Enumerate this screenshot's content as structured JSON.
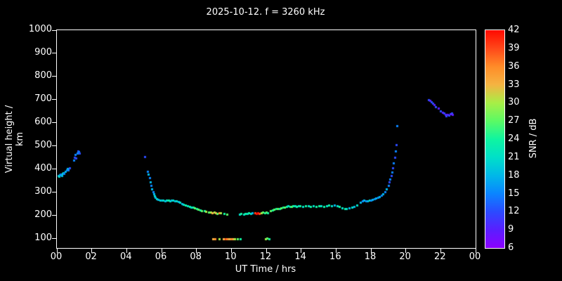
{
  "title": "2025-10-12. f = 3260 kHz",
  "styles": {
    "background": "#000000",
    "foreground": "#ffffff"
  },
  "chart_data": {
    "type": "scatter",
    "title": "2025-10-12. f = 3260 kHz",
    "xlabel": "UT Time / hrs",
    "ylabel": "Virtual height / km",
    "colorbar_label": "SNR / dB",
    "xlim": [
      0,
      24
    ],
    "ylim": [
      60,
      1000
    ],
    "x_ticks": [
      0,
      2,
      4,
      6,
      8,
      10,
      12,
      14,
      16,
      18,
      20,
      22,
      24
    ],
    "x_tick_labels": [
      "00",
      "02",
      "04",
      "06",
      "08",
      "10",
      "12",
      "14",
      "16",
      "18",
      "20",
      "22",
      "00"
    ],
    "y_ticks": [
      100,
      200,
      300,
      400,
      500,
      600,
      700,
      800,
      900,
      1000
    ],
    "snr_ticks": [
      6,
      9,
      12,
      15,
      18,
      21,
      24,
      27,
      30,
      33,
      36,
      39,
      42
    ],
    "snr_range": [
      6,
      42
    ],
    "palette": {
      "6": "#8B00FF",
      "9": "#5A1EFF",
      "12": "#2B4BFF",
      "15": "#0A85FF",
      "18": "#00B8E8",
      "21": "#00E0C8",
      "24": "#0FF5A0",
      "27": "#5BFA64",
      "30": "#A8EE46",
      "33": "#F5B342",
      "36": "#FF8C28",
      "39": "#FF4719",
      "42": "#FF0A00"
    },
    "points": [
      [
        0.08,
        372,
        18
      ],
      [
        0.12,
        368,
        21
      ],
      [
        0.17,
        375,
        18
      ],
      [
        0.22,
        378,
        15
      ],
      [
        0.27,
        372,
        18
      ],
      [
        0.33,
        380,
        21
      ],
      [
        0.38,
        385,
        18
      ],
      [
        0.42,
        382,
        15
      ],
      [
        0.5,
        392,
        18
      ],
      [
        0.55,
        398,
        15
      ],
      [
        0.6,
        402,
        18
      ],
      [
        0.65,
        397,
        15
      ],
      [
        0.72,
        405,
        12
      ],
      [
        0.95,
        440,
        15
      ],
      [
        1.0,
        452,
        12
      ],
      [
        1.05,
        462,
        15
      ],
      [
        1.1,
        447,
        12
      ],
      [
        1.15,
        470,
        15
      ],
      [
        1.2,
        478,
        12
      ],
      [
        1.25,
        474,
        15
      ],
      [
        1.3,
        468,
        12
      ],
      [
        5.05,
        455,
        12
      ],
      [
        5.2,
        392,
        15
      ],
      [
        5.25,
        378,
        18
      ],
      [
        5.3,
        362,
        15
      ],
      [
        5.35,
        345,
        18
      ],
      [
        5.4,
        330,
        15
      ],
      [
        5.45,
        315,
        18
      ],
      [
        5.5,
        303,
        15
      ],
      [
        5.55,
        293,
        18
      ],
      [
        5.6,
        285,
        21
      ],
      [
        5.65,
        278,
        18
      ],
      [
        5.7,
        272,
        21
      ],
      [
        5.8,
        268,
        18
      ],
      [
        5.9,
        265,
        21
      ],
      [
        6.0,
        265,
        18
      ],
      [
        6.1,
        266,
        21
      ],
      [
        6.2,
        264,
        18
      ],
      [
        6.3,
        266,
        21
      ],
      [
        6.4,
        265,
        24
      ],
      [
        6.5,
        264,
        21
      ],
      [
        6.55,
        266,
        18
      ],
      [
        6.65,
        265,
        21
      ],
      [
        6.75,
        264,
        18
      ],
      [
        6.85,
        262,
        21
      ],
      [
        6.95,
        260,
        18
      ],
      [
        7.05,
        256,
        21
      ],
      [
        7.15,
        252,
        18
      ],
      [
        7.25,
        248,
        21
      ],
      [
        7.35,
        245,
        24
      ],
      [
        7.5,
        242,
        21
      ],
      [
        7.6,
        240,
        24
      ],
      [
        7.7,
        237,
        21
      ],
      [
        7.8,
        235,
        24
      ],
      [
        7.9,
        232,
        27
      ],
      [
        8.0,
        230,
        24
      ],
      [
        8.1,
        227,
        27
      ],
      [
        8.2,
        225,
        24
      ],
      [
        8.3,
        222,
        27
      ],
      [
        8.45,
        220,
        24
      ],
      [
        8.55,
        218,
        30
      ],
      [
        8.7,
        216,
        27
      ],
      [
        8.8,
        214,
        30
      ],
      [
        8.9,
        213,
        33
      ],
      [
        9.0,
        214,
        30
      ],
      [
        9.1,
        211,
        33
      ],
      [
        9.2,
        210,
        27
      ],
      [
        9.3,
        213,
        36
      ],
      [
        9.4,
        211,
        30
      ],
      [
        8.95,
        100,
        33
      ],
      [
        9.05,
        99,
        36
      ],
      [
        9.3,
        100,
        30
      ],
      [
        9.6,
        209,
        24
      ],
      [
        9.75,
        207,
        27
      ],
      [
        9.55,
        100,
        33
      ],
      [
        9.65,
        98,
        39
      ],
      [
        9.75,
        100,
        36
      ],
      [
        9.85,
        99,
        33
      ],
      [
        10.0,
        100,
        36
      ],
      [
        10.1,
        98,
        33
      ],
      [
        10.2,
        100,
        30
      ],
      [
        10.35,
        99,
        27
      ],
      [
        10.5,
        100,
        24
      ],
      [
        10.45,
        206,
        21
      ],
      [
        10.55,
        209,
        24
      ],
      [
        10.7,
        207,
        21
      ],
      [
        10.8,
        210,
        24
      ],
      [
        10.9,
        208,
        21
      ],
      [
        11.0,
        211,
        24
      ],
      [
        11.1,
        209,
        21
      ],
      [
        11.2,
        212,
        18
      ],
      [
        11.35,
        211,
        39
      ],
      [
        11.45,
        209,
        42
      ],
      [
        11.5,
        212,
        42
      ],
      [
        11.6,
        210,
        39
      ],
      [
        11.7,
        212,
        30
      ],
      [
        11.8,
        214,
        27
      ],
      [
        11.9,
        212,
        24
      ],
      [
        12.0,
        215,
        27
      ],
      [
        12.1,
        213,
        24
      ],
      [
        11.95,
        100,
        30
      ],
      [
        12.05,
        101,
        27
      ],
      [
        12.15,
        99,
        24
      ],
      [
        12.25,
        220,
        27
      ],
      [
        12.35,
        224,
        24
      ],
      [
        12.45,
        227,
        27
      ],
      [
        12.55,
        230,
        24
      ],
      [
        12.65,
        231,
        27
      ],
      [
        12.75,
        229,
        24
      ],
      [
        12.85,
        233,
        27
      ],
      [
        12.95,
        235,
        24
      ],
      [
        13.05,
        237,
        27
      ],
      [
        13.15,
        239,
        24
      ],
      [
        13.25,
        241,
        21
      ],
      [
        13.35,
        240,
        24
      ],
      [
        13.45,
        238,
        27
      ],
      [
        13.55,
        241,
        24
      ],
      [
        13.65,
        243,
        21
      ],
      [
        13.75,
        240,
        24
      ],
      [
        13.85,
        242,
        21
      ],
      [
        13.95,
        241,
        24
      ],
      [
        14.1,
        240,
        21
      ],
      [
        14.25,
        242,
        24
      ],
      [
        14.4,
        241,
        21
      ],
      [
        14.55,
        239,
        24
      ],
      [
        14.7,
        242,
        21
      ],
      [
        14.85,
        240,
        24
      ],
      [
        15.0,
        241,
        24
      ],
      [
        15.15,
        243,
        21
      ],
      [
        15.3,
        240,
        24
      ],
      [
        15.45,
        242,
        21
      ],
      [
        15.6,
        244,
        24
      ],
      [
        15.75,
        243,
        21
      ],
      [
        15.9,
        245,
        18
      ],
      [
        16.05,
        243,
        21
      ],
      [
        16.2,
        238,
        24
      ],
      [
        16.35,
        234,
        21
      ],
      [
        16.5,
        231,
        24
      ],
      [
        16.6,
        229,
        21
      ],
      [
        16.75,
        233,
        18
      ],
      [
        16.9,
        236,
        21
      ],
      [
        17.05,
        240,
        18
      ],
      [
        17.2,
        244,
        21
      ],
      [
        17.4,
        258,
        18
      ],
      [
        17.5,
        263,
        15
      ],
      [
        17.6,
        266,
        18
      ],
      [
        17.7,
        264,
        15
      ],
      [
        17.8,
        262,
        18
      ],
      [
        17.9,
        265,
        21
      ],
      [
        18.0,
        267,
        15
      ],
      [
        18.1,
        269,
        18
      ],
      [
        18.2,
        272,
        15
      ],
      [
        18.3,
        274,
        18
      ],
      [
        18.4,
        277,
        15
      ],
      [
        18.5,
        281,
        18
      ],
      [
        18.6,
        286,
        15
      ],
      [
        18.7,
        294,
        18
      ],
      [
        18.8,
        304,
        15
      ],
      [
        18.9,
        316,
        18
      ],
      [
        19.0,
        330,
        15
      ],
      [
        19.05,
        344,
        12
      ],
      [
        19.1,
        358,
        15
      ],
      [
        19.15,
        373,
        12
      ],
      [
        19.2,
        389,
        15
      ],
      [
        19.25,
        407,
        12
      ],
      [
        19.3,
        428,
        15
      ],
      [
        19.35,
        452,
        12
      ],
      [
        19.4,
        478,
        15
      ],
      [
        19.45,
        505,
        12
      ],
      [
        19.5,
        588,
        15
      ],
      [
        21.3,
        700,
        12
      ],
      [
        21.38,
        696,
        9
      ],
      [
        21.45,
        691,
        12
      ],
      [
        21.55,
        685,
        12
      ],
      [
        21.62,
        678,
        9
      ],
      [
        21.7,
        671,
        12
      ],
      [
        21.85,
        664,
        9
      ],
      [
        22.0,
        652,
        12
      ],
      [
        22.1,
        646,
        9
      ],
      [
        22.18,
        641,
        12
      ],
      [
        22.25,
        636,
        9
      ],
      [
        22.32,
        631,
        12
      ],
      [
        22.4,
        637,
        9
      ],
      [
        22.48,
        634,
        12
      ],
      [
        22.55,
        639,
        9
      ],
      [
        22.62,
        642,
        12
      ],
      [
        22.68,
        636,
        9
      ]
    ]
  }
}
